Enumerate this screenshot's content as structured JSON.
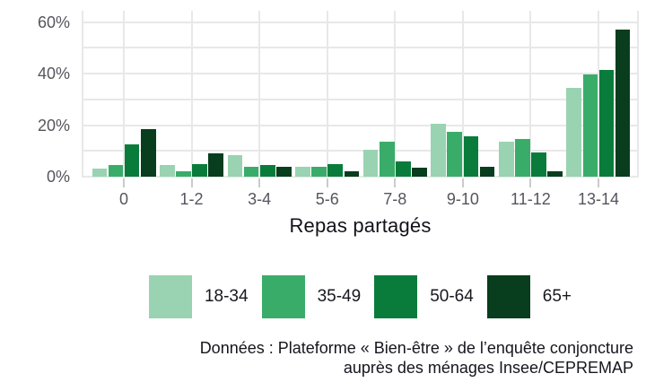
{
  "chart_data": {
    "type": "bar",
    "title": "",
    "xlabel": "Repas partagés",
    "ylabel": "",
    "categories": [
      "0",
      "1-2",
      "3-4",
      "5-6",
      "7-8",
      "9-10",
      "11-12",
      "13-14"
    ],
    "series": [
      {
        "name": "18-34",
        "color": "#9ad3b1",
        "values": [
          3,
          4.5,
          8.5,
          4,
          10.5,
          20.5,
          13.5,
          34.5
        ]
      },
      {
        "name": "35-49",
        "color": "#3aac6a",
        "values": [
          4.5,
          2,
          4,
          4,
          13.5,
          17.5,
          14.5,
          39.5
        ]
      },
      {
        "name": "50-64",
        "color": "#097c3b",
        "values": [
          12.5,
          5,
          4.5,
          5,
          6,
          15.5,
          9.5,
          41.5
        ]
      },
      {
        "name": "65+",
        "color": "#083d1d",
        "values": [
          18.5,
          9,
          4,
          2,
          3.5,
          4,
          2,
          57
        ]
      }
    ],
    "y_ticks": [
      {
        "value": 0,
        "label": "0%"
      },
      {
        "value": 20,
        "label": "20%"
      },
      {
        "value": 40,
        "label": "40%"
      },
      {
        "value": 60,
        "label": "60%"
      }
    ],
    "ylim": [
      0,
      62
    ],
    "grid": {
      "horizontal_every_pct": 10,
      "vertical": "category-centers-and-panel-edges"
    },
    "legend_position": "bottom",
    "colors": {
      "grid": "#e8e8e8",
      "axis_text": "#55555d",
      "tick_mark": "#cbcbcb",
      "text": "#15151d"
    }
  },
  "caption": {
    "line1": "Données : Plateforme « Bien-être » de l’enquête conjoncture",
    "line2": "auprès des ménages Insee/CEPREMAP"
  }
}
